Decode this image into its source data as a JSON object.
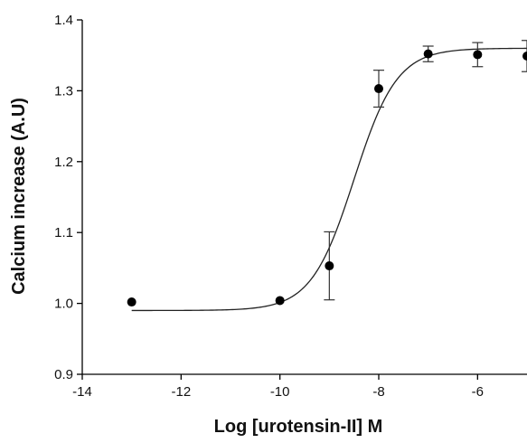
{
  "chart_data": {
    "type": "scatter",
    "title": "",
    "xlabel": "Log [urotensin-II] M",
    "ylabel": "Calcium increase (A.U)",
    "xlim": [
      -14,
      -5
    ],
    "ylim": [
      0.9,
      1.4
    ],
    "xticks": [
      -14,
      -12,
      -10,
      -8,
      -6
    ],
    "yticks": [
      0.9,
      1.0,
      1.1,
      1.2,
      1.3,
      1.4
    ],
    "xtick_labels": [
      "-14",
      "-12",
      "-10",
      "-8",
      "-6"
    ],
    "ytick_labels": [
      "0.9",
      "1.0",
      "1.1",
      "1.2",
      "1.3",
      "1.4"
    ],
    "grid": false,
    "series": [
      {
        "x": [
          -13,
          -10,
          -9,
          -8,
          -7,
          -6,
          -5
        ],
        "y": [
          1.002,
          1.004,
          1.053,
          1.303,
          1.352,
          1.351,
          1.349
        ],
        "error": [
          0,
          0,
          0.048,
          0.026,
          0.011,
          0.017,
          0.022
        ]
      }
    ],
    "fit": {
      "model": "sigmoid",
      "bottom": 0.99,
      "top": 1.36,
      "logEC50": -8.5,
      "hill": 1.0,
      "x_range": [
        -13,
        -5
      ]
    }
  }
}
